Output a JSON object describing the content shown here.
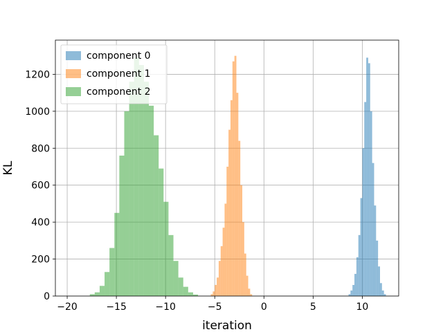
{
  "chart_data": {
    "type": "histogram",
    "title": "",
    "xlabel": "iteration",
    "ylabel": "KL",
    "xlim": [
      -21.2,
      13.7
    ],
    "ylim": [
      0,
      1385
    ],
    "xticks": [
      -20,
      -15,
      -10,
      -5,
      0,
      5,
      10
    ],
    "yticks": [
      0,
      200,
      400,
      600,
      800,
      1000,
      1200
    ],
    "grid": true,
    "legend_position": "top-left",
    "series": [
      {
        "name": "component 0",
        "color": "#1f77b4",
        "bins": [
          [
            8.6,
            8.8,
            10
          ],
          [
            8.8,
            9.0,
            30
          ],
          [
            9.0,
            9.2,
            60
          ],
          [
            9.2,
            9.4,
            120
          ],
          [
            9.4,
            9.6,
            210
          ],
          [
            9.6,
            9.8,
            330
          ],
          [
            9.8,
            10.0,
            530
          ],
          [
            10.0,
            10.2,
            800
          ],
          [
            10.2,
            10.4,
            1050
          ],
          [
            10.4,
            10.6,
            1290
          ],
          [
            10.6,
            10.8,
            1260
          ],
          [
            10.8,
            11.0,
            1000
          ],
          [
            11.0,
            11.2,
            720
          ],
          [
            11.2,
            11.4,
            490
          ],
          [
            11.4,
            11.6,
            300
          ],
          [
            11.6,
            11.8,
            160
          ],
          [
            11.8,
            12.0,
            70
          ],
          [
            12.0,
            12.2,
            30
          ],
          [
            12.2,
            12.4,
            10
          ]
        ]
      },
      {
        "name": "component 1",
        "color": "#ff7f0e",
        "bins": [
          [
            -5.4,
            -5.2,
            10
          ],
          [
            -5.2,
            -5.0,
            25
          ],
          [
            -5.0,
            -4.8,
            60
          ],
          [
            -4.8,
            -4.6,
            100
          ],
          [
            -4.6,
            -4.4,
            190
          ],
          [
            -4.4,
            -4.2,
            270
          ],
          [
            -4.2,
            -4.0,
            370
          ],
          [
            -4.0,
            -3.8,
            500
          ],
          [
            -3.8,
            -3.6,
            700
          ],
          [
            -3.6,
            -3.4,
            900
          ],
          [
            -3.4,
            -3.2,
            1060
          ],
          [
            -3.2,
            -3.0,
            1270
          ],
          [
            -3.0,
            -2.8,
            1300
          ],
          [
            -2.8,
            -2.6,
            1100
          ],
          [
            -2.6,
            -2.4,
            840
          ],
          [
            -2.4,
            -2.2,
            600
          ],
          [
            -2.2,
            -2.0,
            400
          ],
          [
            -2.0,
            -1.8,
            230
          ],
          [
            -1.8,
            -1.6,
            110
          ],
          [
            -1.6,
            -1.4,
            40
          ],
          [
            -1.4,
            -1.2,
            10
          ]
        ]
      },
      {
        "name": "component 2",
        "color": "#2ca02c",
        "bins": [
          [
            -17.7,
            -17.2,
            10
          ],
          [
            -17.2,
            -16.7,
            20
          ],
          [
            -16.7,
            -16.2,
            55
          ],
          [
            -16.2,
            -15.7,
            130
          ],
          [
            -15.7,
            -15.2,
            260
          ],
          [
            -15.2,
            -14.7,
            450
          ],
          [
            -14.7,
            -14.2,
            760
          ],
          [
            -14.2,
            -13.7,
            1000
          ],
          [
            -13.7,
            -13.2,
            1160
          ],
          [
            -13.2,
            -12.7,
            1290
          ],
          [
            -12.7,
            -12.2,
            1250
          ],
          [
            -12.2,
            -11.7,
            1160
          ],
          [
            -11.7,
            -11.2,
            1030
          ],
          [
            -11.2,
            -10.7,
            870
          ],
          [
            -10.7,
            -10.2,
            690
          ],
          [
            -10.2,
            -9.7,
            510
          ],
          [
            -9.7,
            -9.2,
            330
          ],
          [
            -9.2,
            -8.7,
            190
          ],
          [
            -8.7,
            -8.2,
            100
          ],
          [
            -8.2,
            -7.7,
            50
          ],
          [
            -7.7,
            -7.2,
            20
          ],
          [
            -7.2,
            -6.7,
            8
          ]
        ]
      }
    ]
  }
}
